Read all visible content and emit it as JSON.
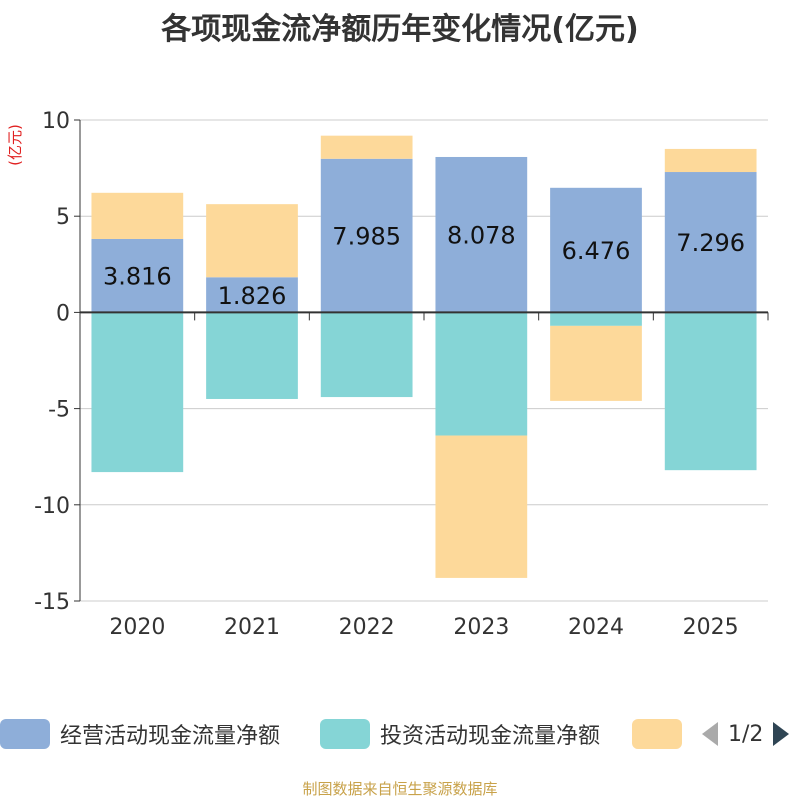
{
  "title": "各项现金流净额历年变化情况(亿元)",
  "source": "制图数据来自恒生聚源数据库",
  "legend": {
    "items": [
      {
        "label": "经营活动现金流量净额",
        "color": "#8eaed9"
      },
      {
        "label": "投资活动现金流量净额",
        "color": "#85d5d6"
      },
      {
        "label": "",
        "color": "#fdd99a"
      }
    ],
    "page": "1/2"
  },
  "chart_data": {
    "type": "bar",
    "stacked": true,
    "categories": [
      "2020",
      "2021",
      "2022",
      "2023",
      "2024",
      "2025"
    ],
    "ylabel": "(亿元)",
    "ylim": [
      -15,
      10
    ],
    "yticks": [
      10,
      5,
      0,
      -5,
      -10,
      -15
    ],
    "ytick_labels": [
      "10",
      "5",
      "0",
      "-5",
      "-10",
      "-15"
    ],
    "grid": true,
    "series": [
      {
        "name": "经营活动现金流量净额",
        "color": "#8eaed9",
        "values": [
          3.816,
          1.826,
          7.985,
          8.078,
          6.476,
          7.296
        ],
        "labels": [
          "3.816",
          "1.826",
          "7.985",
          "8.078",
          "6.476",
          "7.296"
        ]
      },
      {
        "name": "投资活动现金流量净额",
        "color": "#85d5d6",
        "values": [
          -8.3,
          -4.5,
          -4.4,
          -6.4,
          -0.7,
          -8.2
        ]
      },
      {
        "name": "",
        "color": "#fdd99a",
        "values": [
          2.4,
          3.8,
          1.2,
          -7.4,
          -3.9,
          1.2
        ]
      }
    ]
  }
}
